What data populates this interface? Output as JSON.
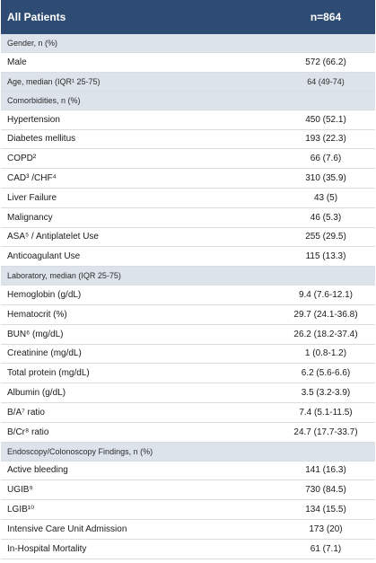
{
  "header": {
    "label": "All Patients",
    "value": "n=864"
  },
  "rows": [
    {
      "type": "section",
      "label": "Gender,  n (%)",
      "value": ""
    },
    {
      "type": "data",
      "label": "Male",
      "value": "572 (66.2)"
    },
    {
      "type": "section",
      "label": "Age,  median  (IQR¹  25-75)",
      "value": "64 (49-74)"
    },
    {
      "type": "section",
      "label": "Comorbidities, n (%)",
      "value": ""
    },
    {
      "type": "data",
      "label": "Hypertension",
      "value": "450 (52.1)"
    },
    {
      "type": "data",
      "label": "Diabetes mellitus",
      "value": "193 (22.3)"
    },
    {
      "type": "data",
      "label": "COPD²",
      "value": "66 (7.6)"
    },
    {
      "type": "data",
      "label": "CAD³ /CHF⁴",
      "value": "310 (35.9)"
    },
    {
      "type": "data",
      "label": "Liver Failure",
      "value": "43 (5)"
    },
    {
      "type": "data",
      "label": "Malignancy",
      "value": "46 (5.3)"
    },
    {
      "type": "data",
      "label": "ASA⁵ / Antiplatelet Use",
      "value": "255 (29.5)"
    },
    {
      "type": "data",
      "label": "Anticoagulant Use",
      "value": "115 (13.3)"
    },
    {
      "type": "section",
      "label": "Laboratory, median (IQR 25-75)",
      "value": ""
    },
    {
      "type": "data",
      "label": "Hemoglobin (g/dL)",
      "value": "9.4 (7.6-12.1)"
    },
    {
      "type": "data",
      "label": "Hematocrit (%)",
      "value": "29.7 (24.1-36.8)"
    },
    {
      "type": "data",
      "label": "BUN⁶ (mg/dL)",
      "value": "26.2 (18.2-37.4)"
    },
    {
      "type": "data",
      "label": "Creatinine (mg/dL)",
      "value": "1 (0.8-1.2)"
    },
    {
      "type": "data",
      "label": "Total protein (mg/dL)",
      "value": "6.2 (5.6-6.6)"
    },
    {
      "type": "data",
      "label": "Albumin (g/dL)",
      "value": "3.5 (3.2-3.9)"
    },
    {
      "type": "data",
      "label": "B/A⁷ ratio",
      "value": "7.4 (5.1-11.5)"
    },
    {
      "type": "data",
      "label": "B/Cr⁸ ratio",
      "value": "24.7 (17.7-33.7)"
    },
    {
      "type": "section",
      "label": "Endoscopy/Colonoscopy Findings, n (%)",
      "value": ""
    },
    {
      "type": "data",
      "label": "Active bleeding",
      "value": "141 (16.3)"
    },
    {
      "type": "data",
      "label": "UGIB⁹",
      "value": "730 (84.5)"
    },
    {
      "type": "data",
      "label": "LGIB¹⁰",
      "value": "134 (15.5)"
    },
    {
      "type": "data",
      "label": "Intensive Care Unit Admission",
      "value": "173 (20)"
    },
    {
      "type": "data",
      "label": "In-Hospital Mortality",
      "value": "61 (7.1)"
    }
  ]
}
